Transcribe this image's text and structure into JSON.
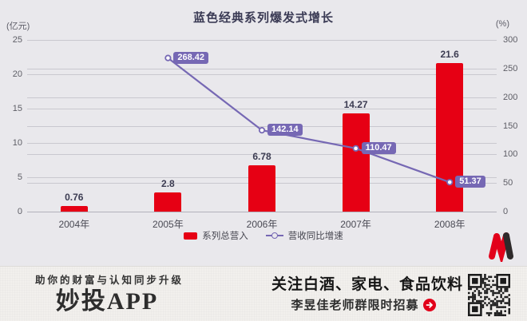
{
  "title": "蓝色经典系列爆发式增长",
  "axes": {
    "left_unit": "(亿元)",
    "right_unit": "(%)"
  },
  "chart_data": {
    "type": "bar",
    "categories": [
      "2004年",
      "2005年",
      "2006年",
      "2007年",
      "2008年"
    ],
    "series": [
      {
        "name": "系列总营入",
        "type": "bar",
        "axis": "left",
        "values": [
          0.76,
          2.8,
          6.78,
          14.27,
          21.6
        ],
        "labels": [
          "0.76",
          "2.8",
          "6.78",
          "14.27",
          "21.6"
        ],
        "color": "#e60014"
      },
      {
        "name": "营收同比增速",
        "type": "line",
        "axis": "right",
        "values": [
          null,
          268.42,
          142.14,
          110.47,
          51.37
        ],
        "labels": [
          null,
          "268.42",
          "142.14",
          "110.47",
          "51.37"
        ],
        "color": "#7668b4"
      }
    ],
    "title": "蓝色经典系列爆发式增长",
    "xlabel": "",
    "ylabel_left": "(亿元)",
    "ylabel_right": "(%)",
    "left_axis": {
      "min": 0,
      "max": 25,
      "ticks": [
        0,
        5,
        10,
        15,
        20,
        25
      ]
    },
    "right_axis": {
      "min": 0,
      "max": 300,
      "ticks": [
        0,
        50,
        100,
        150,
        200,
        250,
        300
      ]
    },
    "grid": true,
    "legend_position": "bottom"
  },
  "legend": [
    {
      "label": "系列总营入",
      "color": "#e60014"
    },
    {
      "label": "营收同比增速",
      "color": "#7668b4"
    }
  ],
  "footer": {
    "tagline": "助你的财富与认知同步升级",
    "brand": "妙投APP",
    "promo_title": "关注白酒、家电、食品饮料",
    "promo_sub": "李昱佳老师群限时招募"
  },
  "colors": {
    "background": "#e9e8ec",
    "footer_background": "#f2f0ed",
    "bar": "#e60014",
    "line": "#7668b4",
    "badge": "#7668b4",
    "title_text": "#3b3b55",
    "accent_red": "#e2001a"
  },
  "icons": {
    "arrow": "arrow-right-icon",
    "qr": "qr-code",
    "logo": "miaotou-m-logo"
  }
}
